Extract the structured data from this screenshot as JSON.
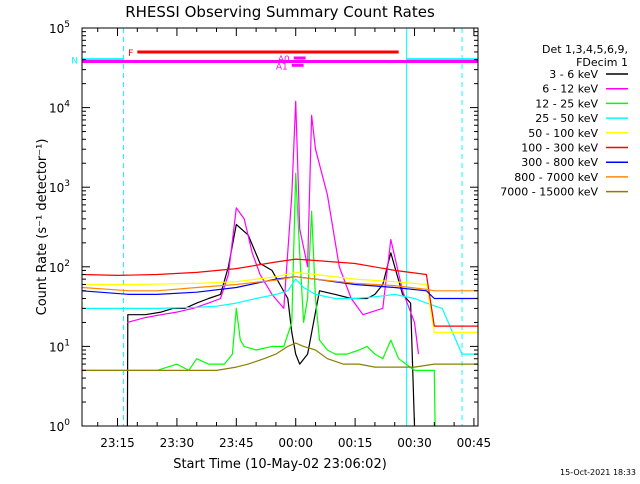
{
  "chart_data": {
    "type": "line",
    "title": "RHESSI Observing Summary Count Rates",
    "xlabel": "Start Time (10-May-02 23:06:02)",
    "ylabel": "Count Rate (s⁻¹ detector⁻¹)",
    "xlim_minutes": [
      -53.97,
      46.03
    ],
    "ylim": [
      1,
      100000
    ],
    "yscale": "log",
    "grid": false,
    "legend_position": "top-right",
    "legend_header": [
      "Det 1,3,4,5,6,9,",
      "FDecim 1"
    ],
    "date_stamp": "15-Oct-2021 18:33",
    "x_ticks": [
      {
        "label": "23:15",
        "minutes": -45
      },
      {
        "label": "23:30",
        "minutes": -30
      },
      {
        "label": "23:45",
        "minutes": -15
      },
      {
        "label": "00:00",
        "minutes": 0
      },
      {
        "label": "00:15",
        "minutes": 15
      },
      {
        "label": "00:30",
        "minutes": 30
      },
      {
        "label": "00:45",
        "minutes": 45
      }
    ],
    "y_ticks": [
      {
        "base": "10",
        "exp": "0",
        "value": 1
      },
      {
        "base": "10",
        "exp": "1",
        "value": 10
      },
      {
        "base": "10",
        "exp": "2",
        "value": 100
      },
      {
        "base": "10",
        "exp": "3",
        "value": 1000
      },
      {
        "base": "10",
        "exp": "4",
        "value": 10000
      },
      {
        "base": "10",
        "exp": "5",
        "value": 100000
      }
    ],
    "series": [
      {
        "name": "3 - 6 keV",
        "color": "#000000",
        "x": [
          -42.5,
          -42.4,
          -38,
          -34,
          -31,
          -28,
          -25,
          -22,
          -19,
          -17,
          -15,
          -12,
          -9,
          -6,
          -4,
          -2,
          -1,
          0,
          1,
          3,
          6,
          10,
          14,
          18,
          20,
          22,
          24,
          27,
          29,
          30
        ],
        "y": [
          1,
          25,
          25,
          27,
          30,
          30,
          35,
          40,
          45,
          100,
          340,
          250,
          110,
          90,
          60,
          40,
          15,
          8,
          6,
          8,
          50,
          45,
          40,
          40,
          45,
          60,
          150,
          45,
          35,
          1
        ]
      },
      {
        "name": "6 - 12 keV",
        "color": "#ff00ff",
        "x": [
          -42.5,
          -38,
          -34,
          -30,
          -26,
          -22,
          -19,
          -17,
          -15,
          -13,
          -11,
          -9,
          -6,
          -3,
          -1,
          0,
          1,
          3,
          4,
          5,
          8,
          11,
          14,
          17,
          20,
          22,
          24,
          27,
          30,
          31
        ],
        "y": [
          20,
          23,
          25,
          27,
          30,
          35,
          40,
          80,
          550,
          400,
          150,
          80,
          45,
          30,
          800,
          12000,
          300,
          100,
          8000,
          3000,
          800,
          100,
          40,
          25,
          28,
          30,
          220,
          50,
          20,
          8
        ]
      },
      {
        "name": "12 - 25 keV",
        "color": "#00ff00",
        "x": [
          -53.97,
          -42,
          -35,
          -30,
          -27,
          -25,
          -22,
          -18,
          -16,
          -15,
          -14,
          -13,
          -10,
          -6,
          -3,
          -1,
          0,
          1,
          2,
          3,
          4,
          5,
          6,
          8,
          10,
          13,
          16,
          18,
          20,
          22,
          24,
          26,
          30,
          33,
          35,
          35.2
        ],
        "y": [
          5,
          5,
          5,
          6,
          5,
          7,
          6,
          6,
          8,
          30,
          12,
          10,
          9,
          10,
          10,
          20,
          1500,
          150,
          20,
          40,
          500,
          40,
          12,
          9,
          8,
          8,
          9,
          10,
          8,
          7,
          12,
          7,
          5,
          5,
          5,
          1
        ]
      },
      {
        "name": "25 - 50 keV",
        "color": "#00ffff",
        "x": [
          -53.97,
          -45,
          -35,
          -25,
          -20,
          -15,
          -10,
          -5,
          -2,
          0,
          2,
          5,
          10,
          15,
          20,
          25,
          30,
          33,
          37,
          42,
          46
        ],
        "y": [
          30,
          30,
          30,
          31,
          32,
          35,
          40,
          45,
          50,
          70,
          55,
          45,
          40,
          40,
          42,
          45,
          40,
          35,
          30,
          8,
          8
        ]
      },
      {
        "name": "50 - 100 keV",
        "color": "#ffff00",
        "x": [
          -53.97,
          -40,
          -25,
          -15,
          -5,
          0,
          5,
          15,
          25,
          33,
          35,
          46
        ],
        "y": [
          60,
          60,
          62,
          65,
          75,
          85,
          80,
          70,
          65,
          60,
          15,
          15
        ]
      },
      {
        "name": "100 - 300 keV",
        "color": "#ff0000",
        "x": [
          -53.97,
          -45,
          -35,
          -25,
          -15,
          -5,
          0,
          5,
          15,
          25,
          33,
          35,
          46
        ],
        "y": [
          80,
          78,
          80,
          85,
          95,
          115,
          125,
          120,
          110,
          90,
          80,
          18,
          18
        ]
      },
      {
        "name": "300 - 800 keV",
        "color": "#0000ff",
        "x": [
          -53.97,
          -42,
          -35,
          -25,
          -15,
          -5,
          0,
          5,
          15,
          25,
          33,
          35,
          46
        ],
        "y": [
          50,
          45,
          45,
          48,
          55,
          70,
          75,
          70,
          60,
          55,
          50,
          40,
          40
        ]
      },
      {
        "name": "800 - 7000 keV",
        "color": "#ff8800",
        "x": [
          -53.97,
          -42,
          -35,
          -25,
          -15,
          -5,
          0,
          5,
          15,
          25,
          33,
          35,
          46
        ],
        "y": [
          55,
          50,
          50,
          55,
          60,
          68,
          75,
          70,
          62,
          58,
          52,
          50,
          50
        ]
      },
      {
        "name": "7000 - 15000 keV",
        "color": "#8b8000",
        "x": [
          -53.97,
          -42,
          -35,
          -25,
          -20,
          -15,
          -12,
          -8,
          -5,
          -2,
          0,
          2,
          5,
          8,
          12,
          16,
          20,
          25,
          30,
          35,
          46
        ],
        "y": [
          5,
          5,
          5,
          5,
          5,
          5.5,
          6,
          7,
          8,
          10,
          11,
          10,
          9,
          7,
          6,
          6,
          5.5,
          5.5,
          5.5,
          6,
          6
        ]
      }
    ],
    "vlines": [
      {
        "x": -53.97,
        "color": "#00ffff",
        "dash": false
      },
      {
        "x": -43.5,
        "color": "#00ffff",
        "dash": true
      },
      {
        "x": 28,
        "color": "#00ffff",
        "dash": false
      },
      {
        "x": 42,
        "color": "#00ffff",
        "dash": true
      }
    ],
    "flags": [
      {
        "label": "N",
        "color": "#00ffff",
        "y": 40000,
        "segments": [
          [
            -53.97,
            -43.5
          ],
          [
            28,
            46.03
          ]
        ]
      },
      {
        "label": "F",
        "color": "#ff0000",
        "y": 50000,
        "segments": [
          [
            -40,
            26
          ]
        ]
      },
      {
        "label": "",
        "color": "#ff00ff",
        "y": 38000,
        "segments": [
          [
            -53.97,
            46.03
          ]
        ]
      },
      {
        "label": "A1",
        "color": "#ff00ff",
        "y": 34000,
        "segments": [
          [
            -1,
            2
          ]
        ]
      },
      {
        "label": "A0",
        "color": "#ff00ff",
        "y": 42000,
        "segments": [
          [
            -0.5,
            2.5
          ]
        ]
      }
    ]
  }
}
